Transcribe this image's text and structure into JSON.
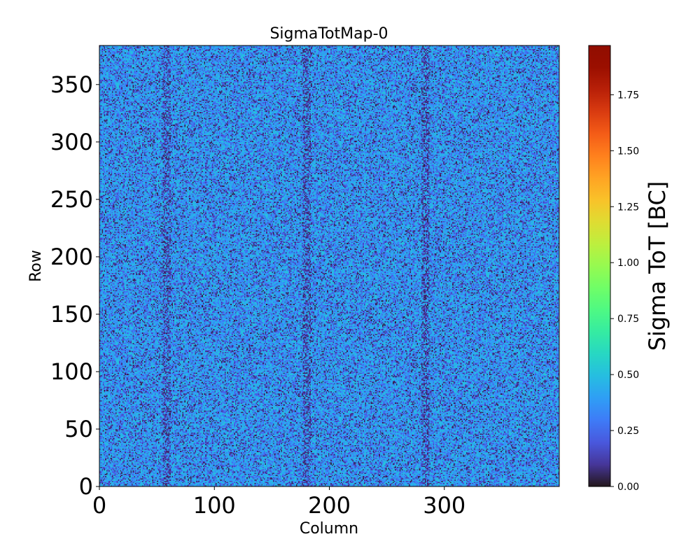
{
  "chart_data": {
    "type": "heatmap",
    "title": "SigmaTotMap-0",
    "xlabel": "Column",
    "ylabel": "Row",
    "xlim": [
      0,
      400
    ],
    "ylim": [
      0,
      384
    ],
    "x_ticks": [
      {
        "value": 0,
        "label": "0"
      },
      {
        "value": 100,
        "label": "100"
      },
      {
        "value": 200,
        "label": "200"
      },
      {
        "value": 300,
        "label": "300"
      }
    ],
    "y_ticks": [
      {
        "value": 0,
        "label": "0"
      },
      {
        "value": 50,
        "label": "50"
      },
      {
        "value": 100,
        "label": "100"
      },
      {
        "value": 150,
        "label": "150"
      },
      {
        "value": 200,
        "label": "200"
      },
      {
        "value": 250,
        "label": "250"
      },
      {
        "value": 300,
        "label": "300"
      },
      {
        "value": 350,
        "label": "350"
      }
    ],
    "colorbar": {
      "label": "Sigma ToT [BC]",
      "colormap": "turbo",
      "vmin": 0,
      "vmax": 1.97,
      "ticks": [
        {
          "value": 0.0,
          "label": "0.00"
        },
        {
          "value": 0.25,
          "label": "0.25"
        },
        {
          "value": 0.5,
          "label": "0.50"
        },
        {
          "value": 0.75,
          "label": "0.75"
        },
        {
          "value": 1.0,
          "label": "1.00"
        },
        {
          "value": 1.25,
          "label": "1.25"
        },
        {
          "value": 1.5,
          "label": "1.50"
        },
        {
          "value": 1.75,
          "label": "1.75"
        }
      ]
    },
    "grid": false,
    "value_distribution": {
      "typical_range": [
        0.0,
        0.55
      ],
      "dominant_value": 0.4,
      "darker_columns_near": [
        58,
        180,
        283
      ]
    }
  }
}
